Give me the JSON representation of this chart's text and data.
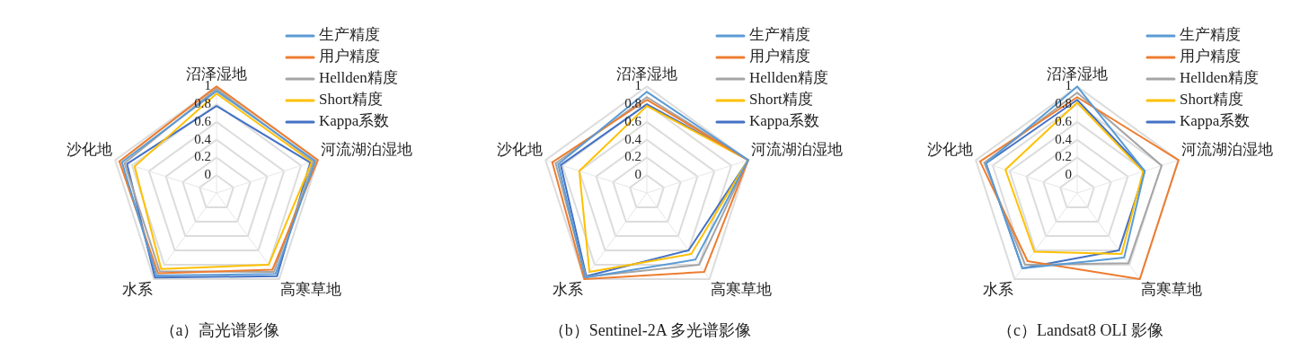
{
  "chart_data": [
    {
      "type": "radar",
      "title": "（a）高光谱影像",
      "categories": [
        "沼泽湿地",
        "河流湖泊湿地",
        "高寒草地",
        "水系",
        "沙化地"
      ],
      "ylim": [
        -0.2,
        1
      ],
      "yticks": [
        0,
        0.2,
        0.4,
        0.6,
        0.8,
        1
      ],
      "grid": true,
      "legend": "top right",
      "marker": "none",
      "series": [
        {
          "name": "生产精度",
          "color": "#5b9bd5",
          "values": [
            0.95,
            0.97,
            0.93,
            0.95,
            0.92
          ]
        },
        {
          "name": "用户精度",
          "color": "#ed7d31",
          "values": [
            1.0,
            1.0,
            0.87,
            0.92,
            0.95
          ]
        },
        {
          "name": "Hellden精度",
          "color": "#a5a5a5",
          "values": [
            0.975,
            0.95,
            0.9,
            0.89,
            0.89
          ]
        },
        {
          "name": "Short精度",
          "color": "#ffc000",
          "values": [
            0.92,
            0.93,
            0.8,
            0.86,
            0.77
          ]
        },
        {
          "name": "Kappa系数",
          "color": "#4472c4",
          "values": [
            0.78,
            0.91,
            0.96,
            0.98,
            0.86
          ]
        }
      ]
    },
    {
      "type": "radar",
      "title": "（b）Sentinel-2A 多光谱影像",
      "categories": [
        "沼泽湿地",
        "河流湖泊湿地",
        "高寒草地",
        "水系",
        "沙化地"
      ],
      "ylim": [
        -0.2,
        1
      ],
      "yticks": [
        0,
        0.2,
        0.4,
        0.6,
        0.8,
        1
      ],
      "grid": true,
      "legend": "top right",
      "marker": "none",
      "series": [
        {
          "name": "生产精度",
          "color": "#5b9bd5",
          "values": [
            0.94,
            1.0,
            0.73,
            0.98,
            0.85
          ]
        },
        {
          "name": "用户精度",
          "color": "#ed7d31",
          "values": [
            0.85,
            1.0,
            0.9,
            1.0,
            0.92
          ]
        },
        {
          "name": "Hellden精度",
          "color": "#a5a5a5",
          "values": [
            0.88,
            1.0,
            0.8,
            0.97,
            0.88
          ]
        },
        {
          "name": "Short精度",
          "color": "#ffc000",
          "values": [
            0.78,
            1.0,
            0.65,
            0.9,
            0.6
          ]
        },
        {
          "name": "Kappa系数",
          "color": "#4472c4",
          "values": [
            0.8,
            1.0,
            0.6,
            0.96,
            0.82
          ]
        }
      ]
    },
    {
      "type": "radar",
      "title": "（c）Landsat8 OLI 影像",
      "categories": [
        "沼泽湿地",
        "河流湖泊湿地",
        "高寒草地",
        "水系",
        "沙化地"
      ],
      "ylim": [
        -0.2,
        1
      ],
      "yticks": [
        0,
        0.2,
        0.4,
        0.6,
        0.8,
        1
      ],
      "grid": true,
      "legend": "top right",
      "marker": "none",
      "series": [
        {
          "name": "生产精度",
          "color": "#5b9bd5",
          "values": [
            1.0,
            0.6,
            0.7,
            0.85,
            0.88
          ]
        },
        {
          "name": "用户精度",
          "color": "#ed7d31",
          "values": [
            0.88,
            1.0,
            1.0,
            0.75,
            0.95
          ]
        },
        {
          "name": "Hellden精度",
          "color": "#a5a5a5",
          "values": [
            0.93,
            0.8,
            0.78,
            0.8,
            0.9
          ]
        },
        {
          "name": "Short精度",
          "color": "#ffc000",
          "values": [
            0.82,
            0.58,
            0.65,
            0.62,
            0.65
          ]
        },
        {
          "name": "Kappa系数",
          "color": "#4472c4",
          "values": [
            0.85,
            0.6,
            0.6,
            0.85,
            0.88
          ]
        }
      ]
    }
  ]
}
